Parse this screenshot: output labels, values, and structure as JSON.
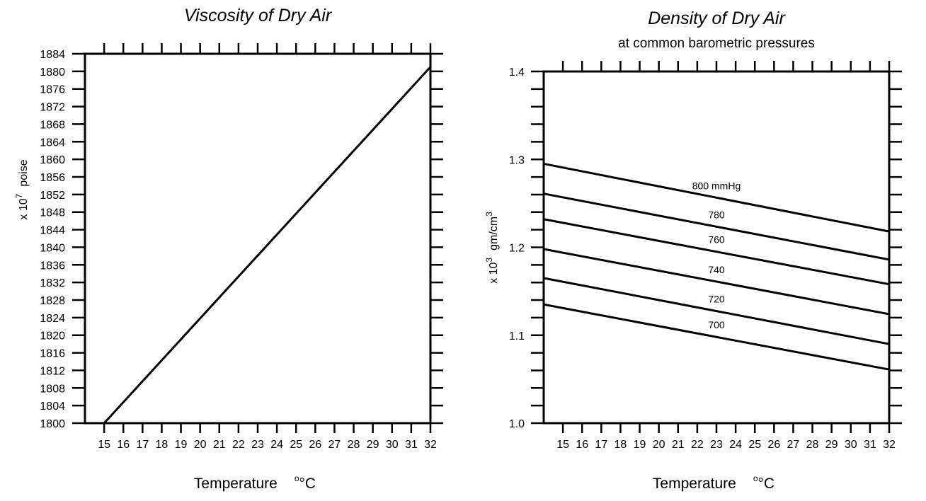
{
  "chart_data": [
    {
      "type": "line",
      "title": "Viscosity of Dry Air",
      "subtitle": "",
      "xlabel": "Temperature",
      "xlabel_unit": "°C",
      "ylabel_prefix": "x 10",
      "ylabel_exp": "7",
      "ylabel_unit": "poise",
      "xlim": [
        14,
        32
      ],
      "ylim": [
        1800,
        1884
      ],
      "x_ticks": [
        15,
        16,
        17,
        18,
        19,
        20,
        21,
        22,
        23,
        24,
        25,
        26,
        27,
        28,
        29,
        30,
        31,
        32
      ],
      "y_ticks": [
        1800,
        1804,
        1808,
        1812,
        1816,
        1820,
        1824,
        1828,
        1832,
        1836,
        1840,
        1844,
        1848,
        1852,
        1856,
        1860,
        1864,
        1868,
        1872,
        1876,
        1880,
        1884
      ],
      "series": [
        {
          "x": [
            15,
            32
          ],
          "y": [
            1800,
            1881
          ]
        }
      ]
    },
    {
      "type": "line",
      "title": "Density of Dry Air",
      "subtitle": "at common barometric pressures",
      "xlabel": "Temperature",
      "xlabel_unit": "°C",
      "ylabel_prefix": "x 10",
      "ylabel_exp": "3",
      "ylabel_unit": "gm/cm",
      "ylabel_unit_exp": "3",
      "xlim": [
        14,
        32
      ],
      "ylim": [
        1.0,
        1.4
      ],
      "x_ticks": [
        15,
        16,
        17,
        18,
        19,
        20,
        21,
        22,
        23,
        24,
        25,
        26,
        27,
        28,
        29,
        30,
        31,
        32
      ],
      "y_ticks": [
        1.0,
        1.1,
        1.2,
        1.3,
        1.4
      ],
      "y_tick_labels": [
        "1.0",
        "1.1",
        "1.2",
        "1.3",
        "1.4"
      ],
      "series": [
        {
          "name": "800 mmHg",
          "x": [
            14,
            32
          ],
          "y": [
            1.295,
            1.218
          ]
        },
        {
          "name": "780",
          "x": [
            14,
            32
          ],
          "y": [
            1.261,
            1.186
          ]
        },
        {
          "name": "760",
          "x": [
            14,
            32
          ],
          "y": [
            1.232,
            1.158
          ]
        },
        {
          "name": "740",
          "x": [
            14,
            32
          ],
          "y": [
            1.198,
            1.124
          ]
        },
        {
          "name": "720",
          "x": [
            14,
            32
          ],
          "y": [
            1.165,
            1.09
          ]
        },
        {
          "name": "700",
          "x": [
            14,
            32
          ],
          "y": [
            1.135,
            1.061
          ]
        }
      ]
    }
  ]
}
